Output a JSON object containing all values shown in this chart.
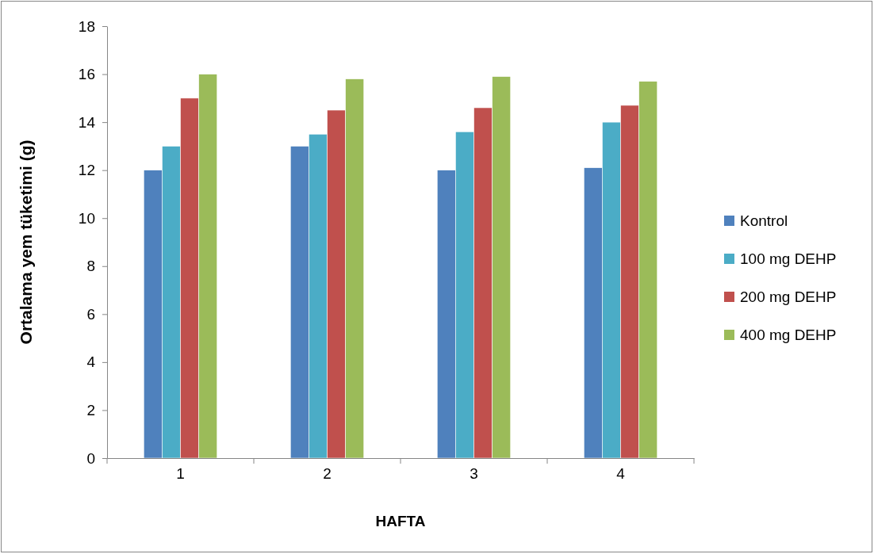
{
  "chart_data": {
    "type": "bar",
    "xlabel": "HAFTA",
    "ylabel": "Ortalama yem tüketimi (g)",
    "categories": [
      "1",
      "2",
      "3",
      "4"
    ],
    "series": [
      {
        "name": "Kontrol",
        "color": "#4f81bd",
        "values": [
          12,
          13,
          12,
          12.1
        ]
      },
      {
        "name": "100 mg DEHP",
        "color": "#4bacc6",
        "values": [
          13,
          13.5,
          13.6,
          14
        ]
      },
      {
        "name": "200 mg DEHP",
        "color": "#c0504d",
        "values": [
          15,
          14.5,
          14.6,
          14.7
        ]
      },
      {
        "name": "400 mg DEHP",
        "color": "#9bbb59",
        "values": [
          16,
          15.8,
          15.9,
          15.7
        ]
      }
    ],
    "ylim": [
      0,
      18
    ],
    "yticks": [
      0,
      2,
      4,
      6,
      8,
      10,
      12,
      14,
      16,
      18
    ],
    "grid": false,
    "legend": "right"
  }
}
